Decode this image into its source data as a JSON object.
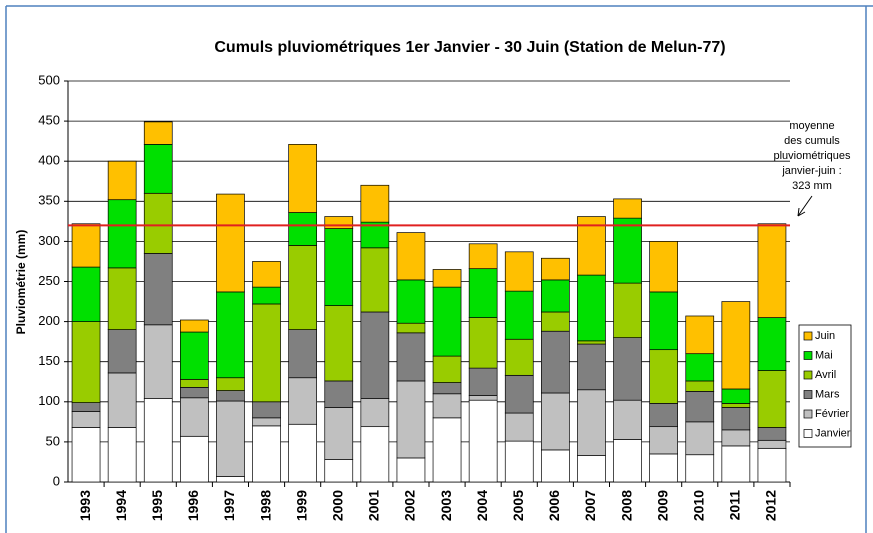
{
  "chart_data": {
    "type": "stacked_bar",
    "title": "Cumuls pluviométriques 1er Janvier - 30 Juin (Station de Melun-77)",
    "y_label": "Pluviométrie (mm)",
    "categories": [
      "1993",
      "1994",
      "1995",
      "1996",
      "1997",
      "1998",
      "1999",
      "2000",
      "2001",
      "2002",
      "2003",
      "2004",
      "2005",
      "2006",
      "2007",
      "2008",
      "2009",
      "2010",
      "2011",
      "2012"
    ],
    "series": [
      {
        "name": "Janvier",
        "color": "#ffffff",
        "values": [
          68,
          68,
          104,
          57,
          7,
          70,
          72,
          28,
          69,
          30,
          80,
          102,
          51,
          40,
          33,
          53,
          35,
          34,
          45,
          42
        ]
      },
      {
        "name": "Février",
        "color": "#c0c0c0",
        "values": [
          20,
          68,
          92,
          48,
          94,
          10,
          58,
          65,
          35,
          96,
          30,
          6,
          35,
          71,
          82,
          49,
          34,
          41,
          20,
          10
        ]
      },
      {
        "name": "Mars",
        "color": "#808080",
        "values": [
          11,
          54,
          89,
          13,
          13,
          20,
          60,
          33,
          108,
          60,
          14,
          34,
          47,
          77,
          57,
          78,
          29,
          38,
          28,
          16
        ]
      },
      {
        "name": "Avril",
        "color": "#99cc00",
        "values": [
          101,
          77,
          75,
          10,
          16,
          122,
          105,
          94,
          80,
          12,
          33,
          63,
          45,
          24,
          4,
          68,
          67,
          13,
          5,
          71
        ]
      },
      {
        "name": "Mai",
        "color": "#00e000",
        "values": [
          68,
          85,
          61,
          59,
          107,
          21,
          41,
          96,
          32,
          54,
          86,
          61,
          60,
          40,
          82,
          81,
          72,
          34,
          18,
          66
        ]
      },
      {
        "name": "Juin",
        "color": "#ffc000",
        "values": [
          54,
          48,
          28,
          15,
          122,
          32,
          85,
          15,
          46,
          59,
          22,
          31,
          49,
          27,
          73,
          24,
          63,
          47,
          109,
          117
        ]
      }
    ],
    "ylim": [
      0,
      500
    ],
    "yticks": [
      0,
      50,
      100,
      150,
      200,
      250,
      300,
      350,
      400,
      450,
      500
    ],
    "grid": true,
    "reference_line": {
      "value": 320,
      "color": "#e02020"
    },
    "annotation": [
      "moyenne",
      "des cumuls",
      "pluviométriques",
      "janvier-juin :",
      "323 mm"
    ]
  }
}
